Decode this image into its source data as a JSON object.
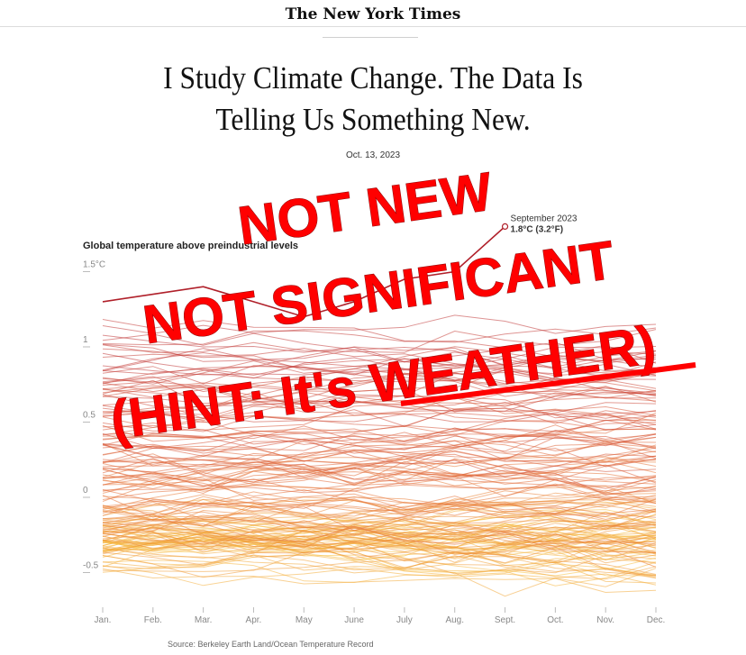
{
  "masthead": "The New York Times",
  "headline": {
    "line1": "I Study Climate Change. The Data Is",
    "line2": "Telling Us Something New."
  },
  "dateline": "Oct. 13, 2023",
  "overlay": {
    "line1": "NOT NEW",
    "line2": "NOT SIGNIFICANT",
    "line3": "(HINT: It's WEATHER)",
    "color": "#ff0000"
  },
  "chart_data": {
    "type": "line",
    "title": "Global temperature above preindustrial levels",
    "categories": [
      "Jan.",
      "Feb.",
      "Mar.",
      "Apr.",
      "May",
      "June",
      "July",
      "Aug.",
      "Sept.",
      "Oct.",
      "Nov.",
      "Dec."
    ],
    "y_ticks": [
      "1.5°C",
      "1",
      "0.5",
      "0",
      "-0.5"
    ],
    "ylim": [
      -0.7,
      1.65
    ],
    "series_description": "One line per year; color runs from yellow (earliest years) to dark red (most recent years).",
    "series_count": 175,
    "color_scale": [
      "#f7c242",
      "#f2a33a",
      "#e8793a",
      "#d8583a",
      "#c0393b"
    ],
    "highlight": {
      "label": "September 2023",
      "value_text": "1.8°C (3.2°F)",
      "x": "Sept.",
      "y": 1.8
    },
    "source": "Source: Berkeley Earth Land/Ocean Temperature Record",
    "grid": false
  }
}
